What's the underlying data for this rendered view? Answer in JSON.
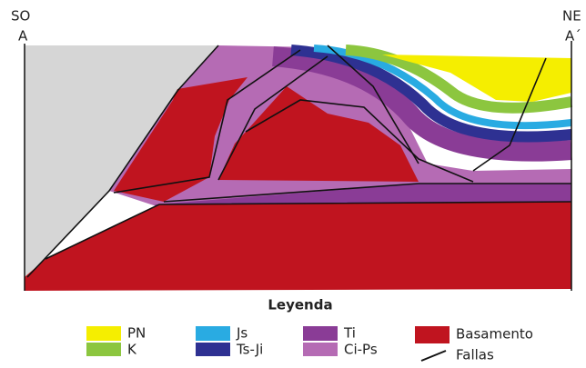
{
  "section": {
    "left_label": "SO",
    "left_point": "A",
    "right_label": "NE",
    "right_point": "A´"
  },
  "legend": {
    "title": "Leyenda",
    "items": [
      "PN",
      "K",
      "Js",
      "Ts-Ji",
      "Ti",
      "Ci-Ps",
      "Basamento",
      "Fallas"
    ]
  }
}
